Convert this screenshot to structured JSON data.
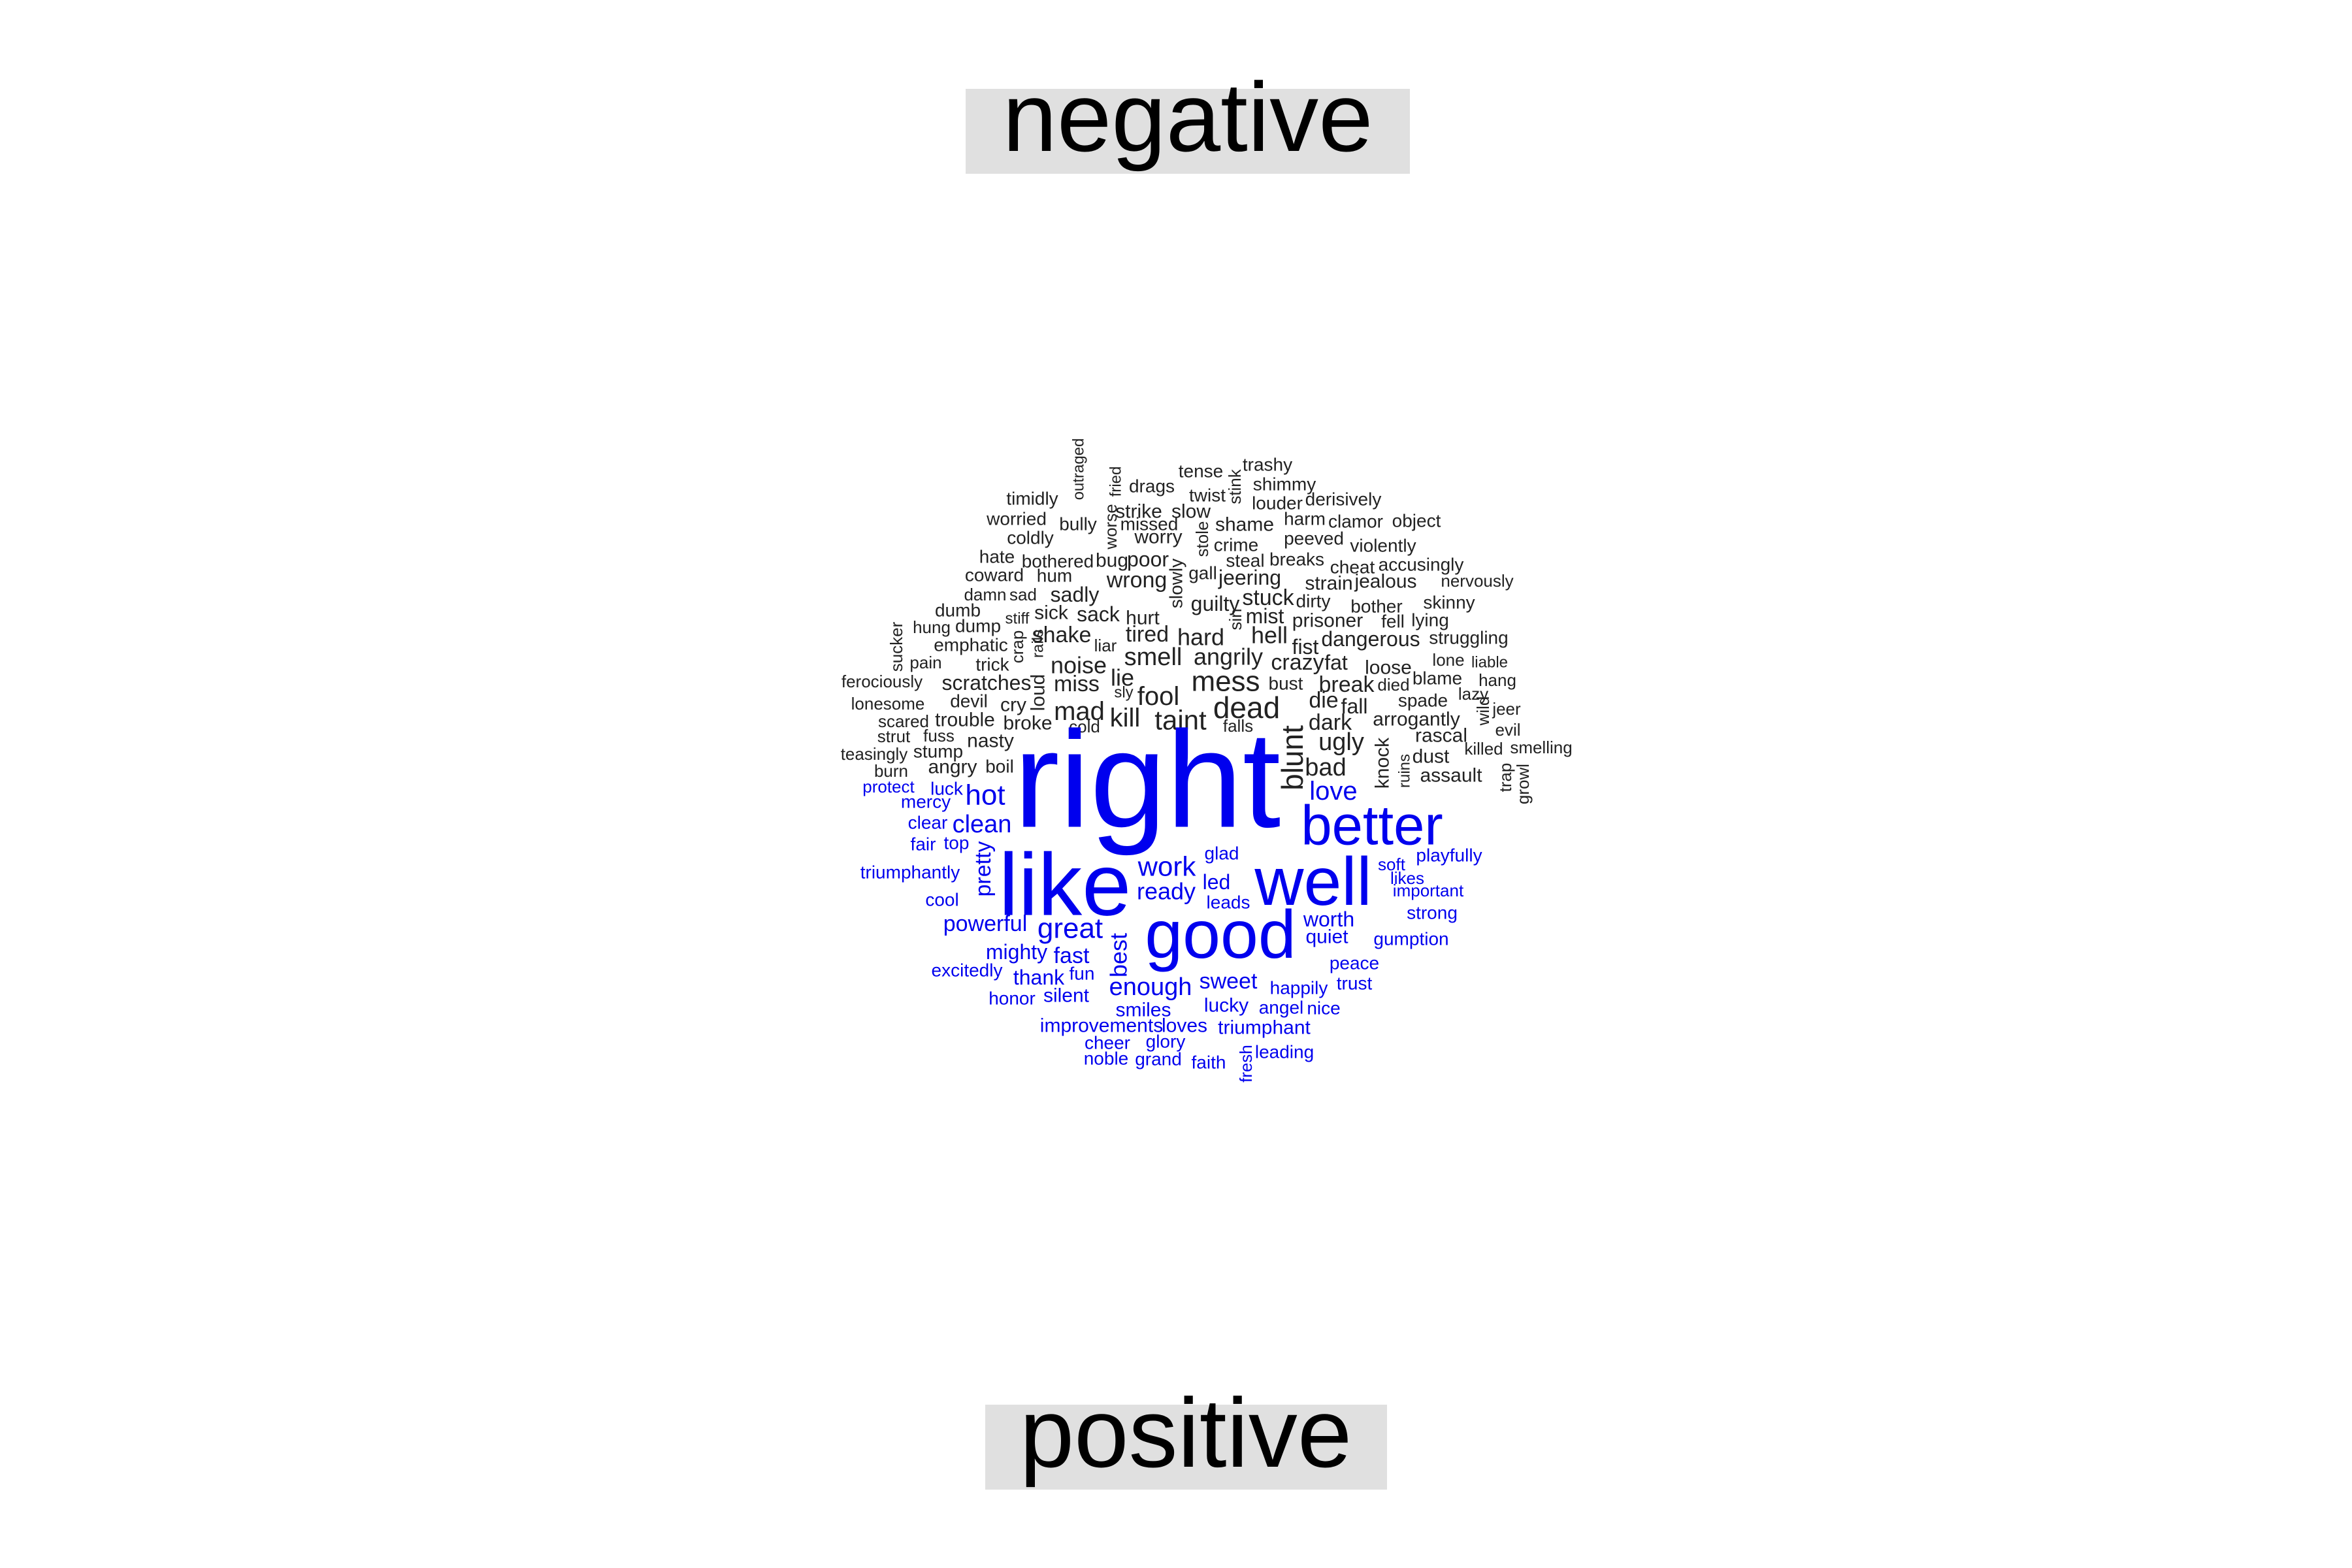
{
  "chart_data": {
    "type": "comparison-wordcloud",
    "groups": [
      {
        "name": "negative",
        "color": "#222222",
        "words": [
          "outraged",
          "fried",
          "tense",
          "trashy",
          "drags",
          "twist",
          "stink",
          "shimmy",
          "timidly",
          "strike",
          "slow",
          "louder",
          "derisively",
          "worried",
          "bully",
          "worse",
          "missed",
          "shame",
          "harm",
          "clamor",
          "object",
          "coldly",
          "worry",
          "stole",
          "crime",
          "peeved",
          "violently",
          "hate",
          "bothered",
          "bug",
          "poor",
          "steal",
          "breaks",
          "cheat",
          "accusingly",
          "coward",
          "hum",
          "wrong",
          "slowly",
          "gall",
          "jeering",
          "strain",
          "jealous",
          "nervously",
          "damn",
          "sad",
          "sadly",
          "stuck",
          "dirty",
          "bother",
          "skinny",
          "dumb",
          "sick",
          "sack",
          "hurt",
          "guilty",
          "mist",
          "prisoner",
          "fell",
          "lying",
          "hung",
          "dump",
          "stiff",
          "crap",
          "shake",
          "liar",
          "tired",
          "hard",
          "sin",
          "hell",
          "dangerous",
          "struggling",
          "emphatic",
          "rails",
          "noise",
          "smell",
          "angrily",
          "fist",
          "loose",
          "lone",
          "liable",
          "sucker",
          "pain",
          "trick",
          "crazy",
          "fat",
          "blame",
          "hang",
          "ferociously",
          "scratches",
          "loud",
          "miss",
          "lie",
          "mess",
          "bust",
          "break",
          "died",
          "lonesome",
          "devil",
          "cry",
          "sly",
          "fool",
          "die",
          "spade",
          "lazy",
          "scared",
          "mad",
          "dead",
          "fall",
          "wild",
          "jeer",
          "trouble",
          "kill",
          "taint",
          "falls",
          "arrogantly",
          "evil",
          "strut",
          "fuss",
          "broke",
          "cold",
          "dark",
          "rascal",
          "killed",
          "smelling",
          "teasingly",
          "nasty",
          "blunt",
          "ugly",
          "knock",
          "stump",
          "dust",
          "trap",
          "burn",
          "angry",
          "boil",
          "bad",
          "ruins",
          "assault",
          "growl"
        ]
      },
      {
        "name": "positive",
        "color": "#0000ee",
        "words": [
          "right",
          "like",
          "well",
          "good",
          "better",
          "protect",
          "luck",
          "hot",
          "love",
          "mercy",
          "clear",
          "clean",
          "fair",
          "top",
          "glad",
          "pretty",
          "work",
          "soft",
          "playfully",
          "triumphantly",
          "led",
          "likes",
          "ready",
          "important",
          "cool",
          "leads",
          "strong",
          "powerful",
          "great",
          "worth",
          "quiet",
          "gumption",
          "mighty",
          "fast",
          "best",
          "excitedly",
          "peace",
          "thank",
          "fun",
          "enough",
          "sweet",
          "trust",
          "silent",
          "happily",
          "honor",
          "smiles",
          "lucky",
          "angel",
          "nice",
          "improvements",
          "loves",
          "triumphant",
          "cheer",
          "glory",
          "noble",
          "grand",
          "faith",
          "fresh",
          "leading"
        ]
      }
    ]
  }
}
